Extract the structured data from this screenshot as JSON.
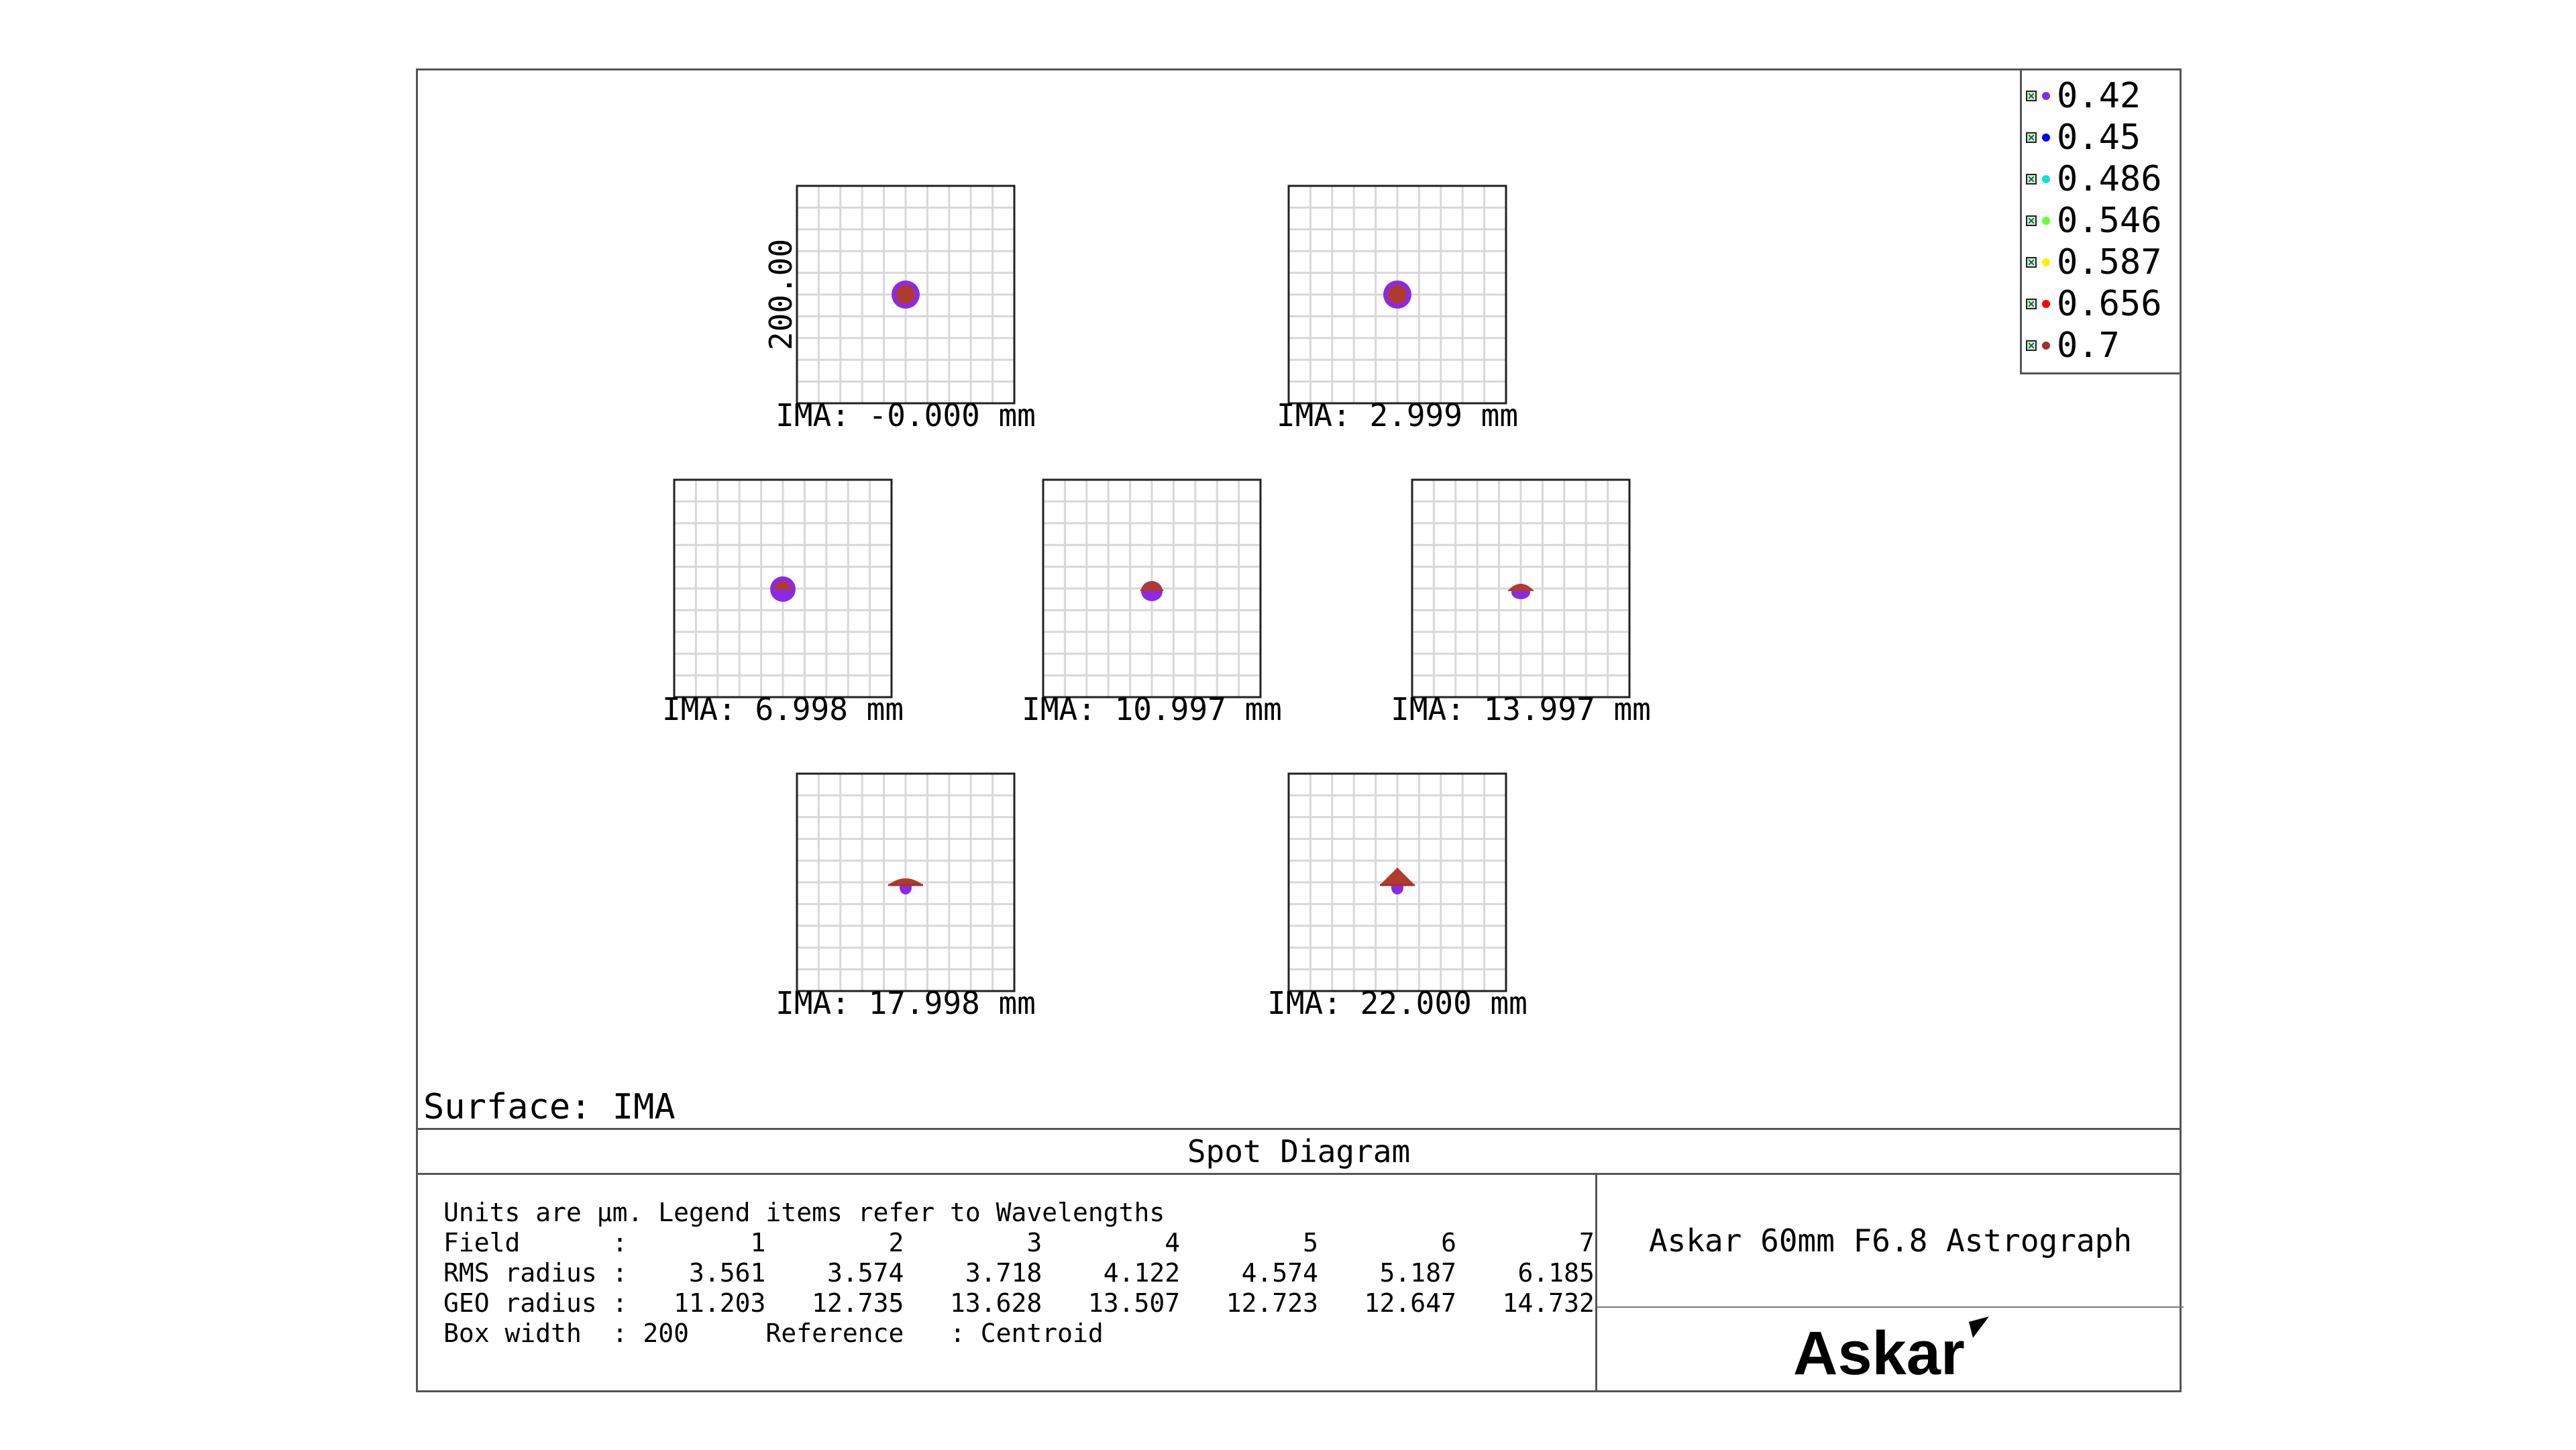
{
  "diagram": {
    "type": "spot_diagram",
    "surface_label": "Surface: IMA",
    "title": "Spot Diagram",
    "box_axis_label": "200.00",
    "fields": [
      {
        "label": "IMA: -0.000 mm",
        "shape": "round"
      },
      {
        "label": "IMA: 2.999 mm",
        "shape": "round"
      },
      {
        "label": "IMA: 6.998 mm",
        "shape": "round-small"
      },
      {
        "label": "IMA: 10.997 mm",
        "shape": "cap"
      },
      {
        "label": "IMA: 13.997 mm",
        "shape": "flat-cap"
      },
      {
        "label": "IMA: 17.998 mm",
        "shape": "flat-wide"
      },
      {
        "label": "IMA: 22.000 mm",
        "shape": "triangle"
      }
    ],
    "legend": [
      {
        "label": "0.42",
        "color": "#8a2be2"
      },
      {
        "label": "0.45",
        "color": "#0000ff"
      },
      {
        "label": "0.486",
        "color": "#00e5d0"
      },
      {
        "label": "0.546",
        "color": "#66ff33"
      },
      {
        "label": "0.587",
        "color": "#f5f500"
      },
      {
        "label": "0.656",
        "color": "#ff0000"
      },
      {
        "label": "0.7",
        "color": "#a0302c"
      }
    ],
    "info_lines": [
      "Units are µm. Legend items refer to Wavelengths",
      "Field      :        1        2        3        4        5        6        7",
      "RMS radius :    3.561    3.574    3.718    4.122    4.574    5.187    6.185",
      "GEO radius :   11.203   12.735   13.628   13.507   12.723   12.647   14.732",
      "Box width  : 200     Reference   : Centroid"
    ],
    "system_name": "Askar 60mm F6.8 Astrograph",
    "logo_text": "Askar"
  }
}
